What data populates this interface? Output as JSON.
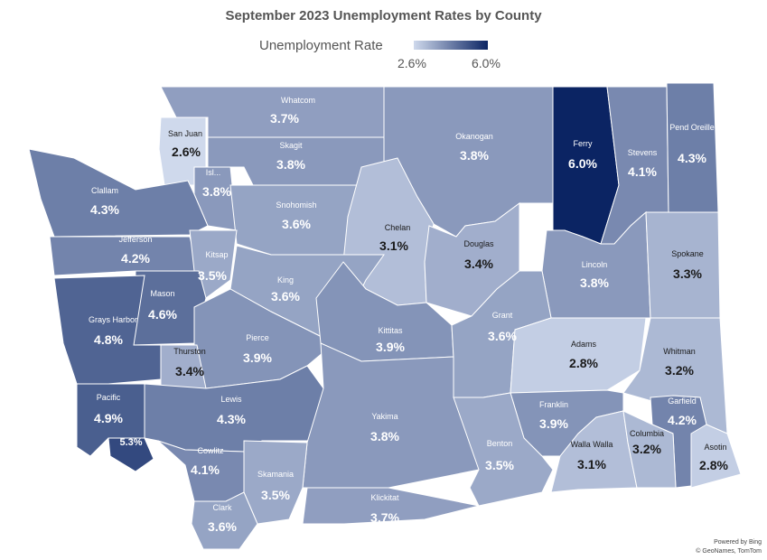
{
  "title": "September 2023 Unemployment Rates by County",
  "legend": {
    "label": "Unemployment Rate",
    "min": "2.6%",
    "max": "6.0%",
    "min_value": 2.6,
    "max_value": 6.0
  },
  "credits": {
    "line1": "Powered by Bing",
    "line2": "© GeoNames, TomTom"
  },
  "counties": [
    {
      "name": "Whatcom",
      "rate": "3.7%",
      "value": 3.7
    },
    {
      "name": "San Juan",
      "rate": "2.6%",
      "value": 2.6
    },
    {
      "name": "Skagit",
      "rate": "3.8%",
      "value": 3.8
    },
    {
      "name": "Isl...",
      "rate": "3.8%",
      "value": 3.8
    },
    {
      "name": "Okanogan",
      "rate": "3.8%",
      "value": 3.8
    },
    {
      "name": "Ferry",
      "rate": "6.0%",
      "value": 6.0
    },
    {
      "name": "Stevens",
      "rate": "4.1%",
      "value": 4.1
    },
    {
      "name": "Pend Oreille",
      "rate": "4.3%",
      "value": 4.3
    },
    {
      "name": "Clallam",
      "rate": "4.3%",
      "value": 4.3
    },
    {
      "name": "Snohomish",
      "rate": "3.6%",
      "value": 3.6
    },
    {
      "name": "Chelan",
      "rate": "3.1%",
      "value": 3.1
    },
    {
      "name": "Douglas",
      "rate": "3.4%",
      "value": 3.4
    },
    {
      "name": "Jefferson",
      "rate": "4.2%",
      "value": 4.2
    },
    {
      "name": "Kitsap",
      "rate": "3.5%",
      "value": 3.5
    },
    {
      "name": "King",
      "rate": "3.6%",
      "value": 3.6
    },
    {
      "name": "Lincoln",
      "rate": "3.8%",
      "value": 3.8
    },
    {
      "name": "Spokane",
      "rate": "3.3%",
      "value": 3.3
    },
    {
      "name": "Mason",
      "rate": "4.6%",
      "value": 4.6
    },
    {
      "name": "Grays Harbor",
      "rate": "4.8%",
      "value": 4.8
    },
    {
      "name": "Pierce",
      "rate": "3.9%",
      "value": 3.9
    },
    {
      "name": "Kittitas",
      "rate": "3.9%",
      "value": 3.9
    },
    {
      "name": "Grant",
      "rate": "3.6%",
      "value": 3.6
    },
    {
      "name": "Adams",
      "rate": "2.8%",
      "value": 2.8
    },
    {
      "name": "Thurston",
      "rate": "3.4%",
      "value": 3.4
    },
    {
      "name": "Whitman",
      "rate": "3.2%",
      "value": 3.2
    },
    {
      "name": "Pacific",
      "rate": "4.9%",
      "value": 4.9
    },
    {
      "name": "Lewis",
      "rate": "4.3%",
      "value": 4.3
    },
    {
      "name": "Yakima",
      "rate": "3.8%",
      "value": 3.8
    },
    {
      "name": "Franklin",
      "rate": "3.9%",
      "value": 3.9
    },
    {
      "name": "Garfield",
      "rate": "4.2%",
      "value": 4.2
    },
    {
      "name": "",
      "rate": "5.3%",
      "value": 5.3
    },
    {
      "name": "Cowlitz",
      "rate": "4.1%",
      "value": 4.1
    },
    {
      "name": "Benton",
      "rate": "3.5%",
      "value": 3.5
    },
    {
      "name": "Walla Walla",
      "rate": "3.1%",
      "value": 3.1
    },
    {
      "name": "Columbia",
      "rate": "3.2%",
      "value": 3.2
    },
    {
      "name": "Asotin",
      "rate": "2.8%",
      "value": 2.8
    },
    {
      "name": "Skamania",
      "rate": "3.5%",
      "value": 3.5
    },
    {
      "name": "Klickitat",
      "rate": "3.7%",
      "value": 3.7
    },
    {
      "name": "Clark",
      "rate": "3.6%",
      "value": 3.6
    }
  ]
}
